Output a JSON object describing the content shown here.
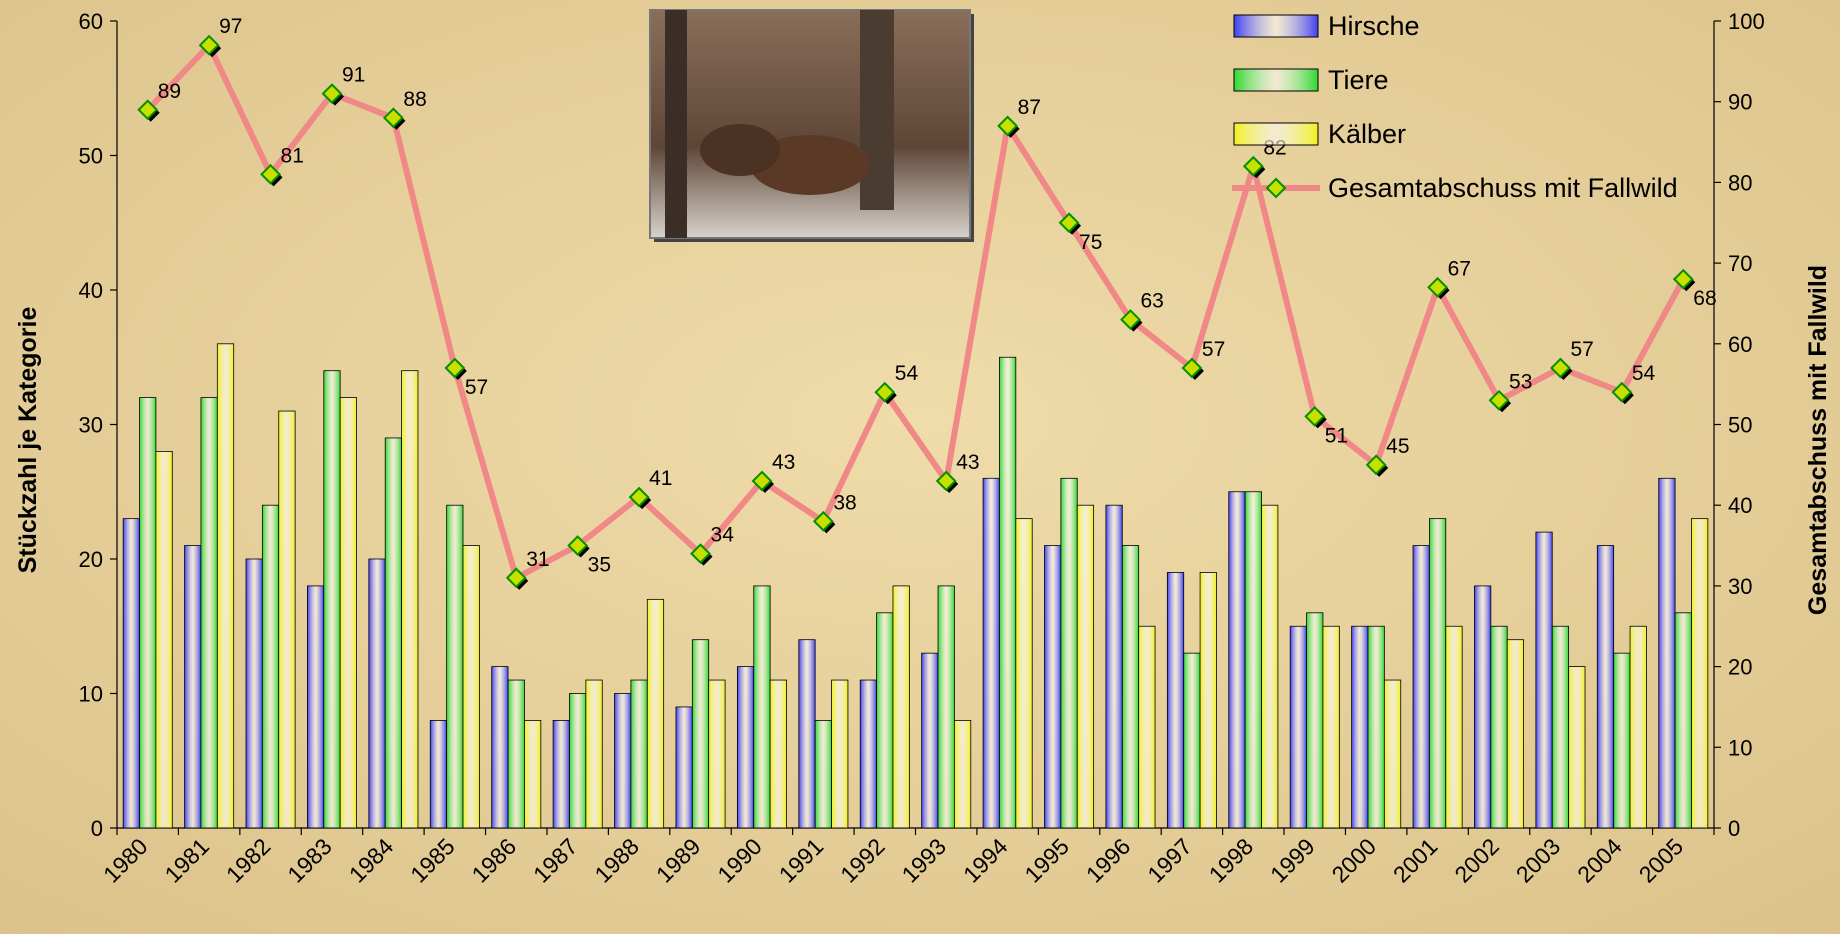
{
  "chart_data": {
    "type": "bar",
    "categories": [
      "1980",
      "1981",
      "1982",
      "1983",
      "1984",
      "1985",
      "1986",
      "1987",
      "1988",
      "1989",
      "1990",
      "1991",
      "1992",
      "1993",
      "1994",
      "1995",
      "1996",
      "1997",
      "1998",
      "1999",
      "2000",
      "2001",
      "2002",
      "2003",
      "2004",
      "2005"
    ],
    "y_label": "Stückzahl je Kategorie",
    "y2_label": "Gesamtabschuss mit Fallwild",
    "ylim": [
      0,
      60
    ],
    "yticks": [
      0,
      10,
      20,
      30,
      40,
      50,
      60
    ],
    "y2lim": [
      0,
      100
    ],
    "y2ticks": [
      0,
      10,
      20,
      30,
      40,
      50,
      60,
      70,
      80,
      90,
      100
    ],
    "legend": "top-right",
    "series": [
      {
        "name": "Hirsche",
        "color": "#4040f0",
        "values": [
          23,
          21,
          20,
          18,
          20,
          8,
          12,
          8,
          10,
          9,
          12,
          14,
          11,
          13,
          26,
          21,
          24,
          19,
          25,
          15,
          15,
          21,
          18,
          22,
          21,
          26
        ]
      },
      {
        "name": "Tiere",
        "color": "#30d830",
        "values": [
          32,
          32,
          24,
          34,
          29,
          24,
          11,
          10,
          11,
          14,
          18,
          8,
          16,
          18,
          35,
          26,
          21,
          13,
          25,
          16,
          15,
          23,
          15,
          15,
          13,
          16
        ]
      },
      {
        "name": "Kälber",
        "color": "#f0f020",
        "values": [
          28,
          36,
          31,
          32,
          34,
          21,
          8,
          11,
          17,
          11,
          11,
          11,
          18,
          8,
          23,
          24,
          15,
          19,
          24,
          15,
          11,
          15,
          14,
          12,
          15,
          23
        ]
      },
      {
        "name": "Gesamtabschuss mit Fallwild",
        "type": "line",
        "axis": "y2",
        "color": "#f08888",
        "values": [
          89,
          97,
          81,
          91,
          88,
          57,
          31,
          35,
          41,
          34,
          43,
          38,
          54,
          43,
          87,
          75,
          63,
          57,
          82,
          51,
          45,
          67,
          53,
          57,
          54,
          68
        ]
      }
    ]
  }
}
